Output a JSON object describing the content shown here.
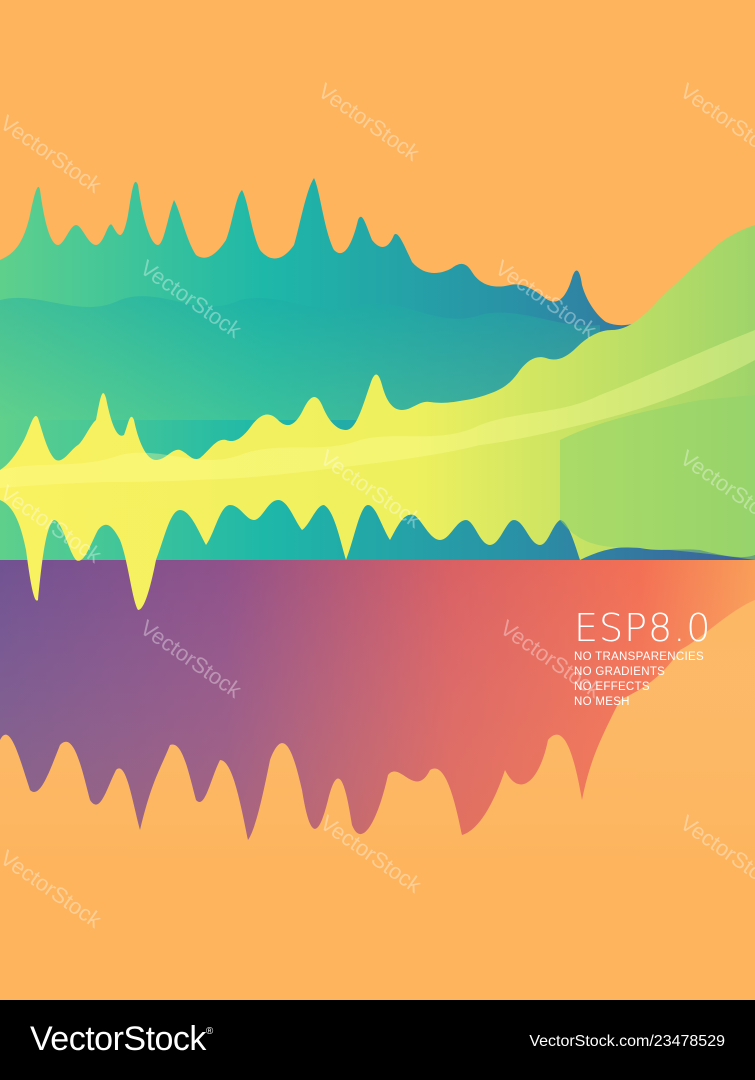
{
  "colors": {
    "background": "#FDB45D",
    "teal": "#1EB8A8",
    "yellow": "#F9F160",
    "purple": "#8B4A86",
    "red": "#F26A4E",
    "footer": "#000000"
  },
  "caption": {
    "title": "ESP8.0",
    "lines": [
      "NO TRANSPARENCIES",
      "NO GRADIENTS",
      "NO EFFECTS",
      "NO MESH"
    ]
  },
  "watermark": {
    "text": "VectorStock"
  },
  "footer": {
    "logo": "VectorStock",
    "registered": "®",
    "image_credit": "VectorStock.com/23478529"
  }
}
